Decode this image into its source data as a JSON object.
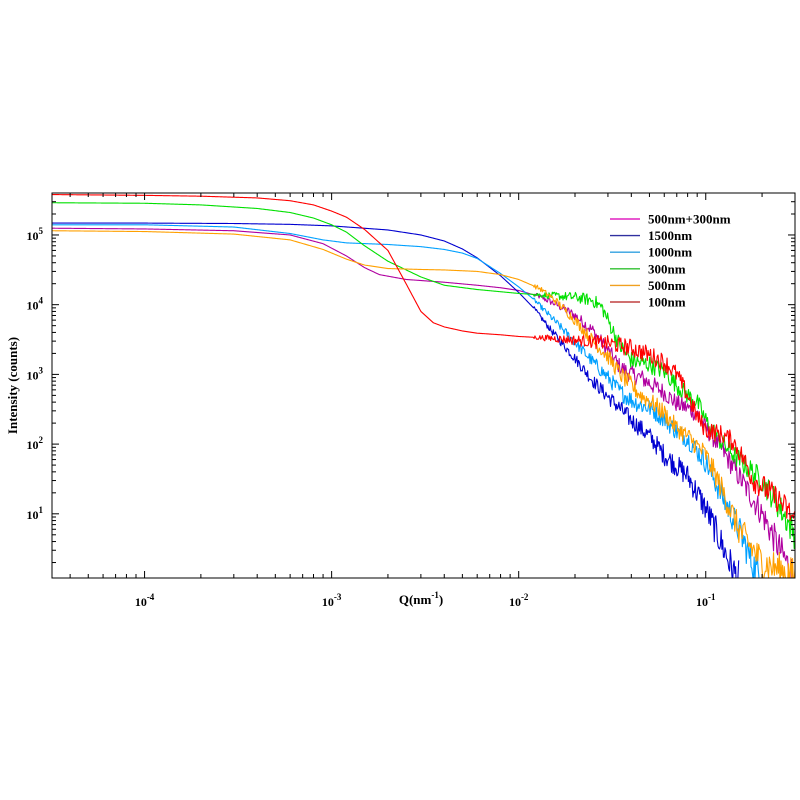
{
  "chart_data": {
    "type": "line",
    "xscale": "log",
    "yscale": "log",
    "xlim": [
      3.2e-05,
      0.3
    ],
    "ylim": [
      1.2,
      400000
    ],
    "grid": false,
    "legend_position": "top-right",
    "xlabel": {
      "base": "Q(nm",
      "sup": "-1",
      "end": ")"
    },
    "ylabel": "Intensity (counts)",
    "x_ticks": [
      {
        "value": 0.0001,
        "base": "10",
        "exp": "-4"
      },
      {
        "value": 0.001,
        "base": "10",
        "exp": "-3"
      },
      {
        "value": 0.01,
        "base": "10",
        "exp": "-2"
      },
      {
        "value": 0.1,
        "base": "10",
        "exp": "-1"
      }
    ],
    "y_ticks": [
      {
        "value": 10,
        "base": "10",
        "exp": "1"
      },
      {
        "value": 100,
        "base": "10",
        "exp": "2"
      },
      {
        "value": 1000,
        "base": "10",
        "exp": "3"
      },
      {
        "value": 10000,
        "base": "10",
        "exp": "4"
      },
      {
        "value": 100000,
        "base": "10",
        "exp": "5"
      }
    ],
    "series": [
      {
        "name": "500nm+300nm",
        "color": "#e020c0",
        "dark": "#b000a0",
        "points": [
          [
            3.2e-05,
            125000
          ],
          [
            0.0001,
            122000
          ],
          [
            0.0003,
            115000
          ],
          [
            0.0006,
            100000
          ],
          [
            0.0009,
            75000
          ],
          [
            0.0012,
            50000
          ],
          [
            0.0015,
            34000
          ],
          [
            0.0018,
            27000
          ],
          [
            0.0025,
            23000
          ],
          [
            0.004,
            21000
          ],
          [
            0.006,
            19000
          ],
          [
            0.008,
            17500
          ],
          [
            0.01,
            16000
          ],
          [
            0.013,
            13000
          ],
          [
            0.016,
            10000
          ],
          [
            0.02,
            7000
          ],
          [
            0.025,
            4200
          ],
          [
            0.03,
            2200
          ],
          [
            0.035,
            1250
          ],
          [
            0.04,
            1000
          ],
          [
            0.045,
            900
          ],
          [
            0.05,
            750
          ],
          [
            0.06,
            550
          ],
          [
            0.07,
            380
          ],
          [
            0.08,
            330
          ],
          [
            0.09,
            270
          ],
          [
            0.1,
            170
          ],
          [
            0.12,
            90
          ],
          [
            0.15,
            35
          ],
          [
            0.2,
            10
          ],
          [
            0.25,
            3
          ],
          [
            0.3,
            1.2
          ]
        ]
      },
      {
        "name": "1500nm",
        "color": "#3030a0",
        "dark": "#0000d0",
        "points": [
          [
            3.2e-05,
            148000
          ],
          [
            0.0001,
            148000
          ],
          [
            0.0003,
            146000
          ],
          [
            0.0006,
            142000
          ],
          [
            0.001,
            135000
          ],
          [
            0.002,
            118000
          ],
          [
            0.003,
            100000
          ],
          [
            0.004,
            82000
          ],
          [
            0.005,
            63000
          ],
          [
            0.006,
            47000
          ],
          [
            0.008,
            26000
          ],
          [
            0.01,
            15000
          ],
          [
            0.012,
            9000
          ],
          [
            0.015,
            4200
          ],
          [
            0.02,
            1700
          ],
          [
            0.025,
            800
          ],
          [
            0.03,
            480
          ],
          [
            0.035,
            320
          ],
          [
            0.04,
            220
          ],
          [
            0.05,
            130
          ],
          [
            0.06,
            70
          ],
          [
            0.08,
            35
          ],
          [
            0.1,
            12
          ],
          [
            0.12,
            4
          ],
          [
            0.14,
            1.5
          ],
          [
            0.15,
            1.2
          ]
        ]
      },
      {
        "name": "1000nm",
        "color": "#30a0e0",
        "dark": "#00a0ff",
        "points": [
          [
            3.2e-05,
            140000
          ],
          [
            0.0001,
            140000
          ],
          [
            0.0003,
            130000
          ],
          [
            0.0006,
            105000
          ],
          [
            0.0009,
            85000
          ],
          [
            0.0012,
            77000
          ],
          [
            0.002,
            73000
          ],
          [
            0.003,
            68000
          ],
          [
            0.004,
            62000
          ],
          [
            0.005,
            55000
          ],
          [
            0.006,
            46000
          ],
          [
            0.008,
            28000
          ],
          [
            0.01,
            18000
          ],
          [
            0.012,
            12000
          ],
          [
            0.015,
            6500
          ],
          [
            0.02,
            2900
          ],
          [
            0.025,
            1500
          ],
          [
            0.03,
            900
          ],
          [
            0.035,
            560
          ],
          [
            0.04,
            430
          ],
          [
            0.045,
            360
          ],
          [
            0.05,
            330
          ],
          [
            0.06,
            230
          ],
          [
            0.07,
            150
          ],
          [
            0.08,
            120
          ],
          [
            0.1,
            55
          ],
          [
            0.12,
            20
          ],
          [
            0.15,
            6
          ],
          [
            0.18,
            1.8
          ],
          [
            0.2,
            1.2
          ]
        ]
      },
      {
        "name": "300nm",
        "color": "#30c030",
        "dark": "#00e000",
        "points": [
          [
            3.2e-05,
            290000
          ],
          [
            0.0001,
            285000
          ],
          [
            0.0002,
            270000
          ],
          [
            0.0004,
            240000
          ],
          [
            0.0006,
            210000
          ],
          [
            0.0008,
            175000
          ],
          [
            0.001,
            140000
          ],
          [
            0.0012,
            110000
          ],
          [
            0.0015,
            70000
          ],
          [
            0.002,
            42000
          ],
          [
            0.003,
            25000
          ],
          [
            0.004,
            19000
          ],
          [
            0.006,
            16500
          ],
          [
            0.01,
            14500
          ],
          [
            0.015,
            13500
          ],
          [
            0.02,
            12800
          ],
          [
            0.025,
            11500
          ],
          [
            0.028,
            9000
          ],
          [
            0.03,
            6000
          ],
          [
            0.035,
            2500
          ],
          [
            0.04,
            1600
          ],
          [
            0.045,
            1450
          ],
          [
            0.05,
            1400
          ],
          [
            0.06,
            1100
          ],
          [
            0.07,
            700
          ],
          [
            0.08,
            500
          ],
          [
            0.09,
            400
          ],
          [
            0.1,
            220
          ],
          [
            0.12,
            110
          ],
          [
            0.15,
            60
          ],
          [
            0.2,
            30
          ],
          [
            0.25,
            12
          ],
          [
            0.3,
            5
          ]
        ]
      },
      {
        "name": "500nm",
        "color": "#f0a020",
        "dark": "#ffa000",
        "points": [
          [
            3.2e-05,
            115000
          ],
          [
            0.0001,
            112000
          ],
          [
            0.0003,
            103000
          ],
          [
            0.0006,
            85000
          ],
          [
            0.0009,
            62000
          ],
          [
            0.0012,
            45000
          ],
          [
            0.0015,
            37000
          ],
          [
            0.002,
            33000
          ],
          [
            0.003,
            32000
          ],
          [
            0.004,
            31500
          ],
          [
            0.006,
            30000
          ],
          [
            0.008,
            27000
          ],
          [
            0.01,
            23000
          ],
          [
            0.013,
            17000
          ],
          [
            0.016,
            11000
          ],
          [
            0.02,
            6000
          ],
          [
            0.025,
            3000
          ],
          [
            0.03,
            1800
          ],
          [
            0.035,
            1000
          ],
          [
            0.04,
            700
          ],
          [
            0.045,
            500
          ],
          [
            0.05,
            420
          ],
          [
            0.06,
            280
          ],
          [
            0.07,
            170
          ],
          [
            0.08,
            130
          ],
          [
            0.1,
            70
          ],
          [
            0.12,
            25
          ],
          [
            0.15,
            6
          ],
          [
            0.2,
            2
          ],
          [
            0.3,
            1.3
          ]
        ]
      },
      {
        "name": "100nm",
        "color": "#c04040",
        "dark": "#ff0000",
        "points": [
          [
            3.2e-05,
            380000
          ],
          [
            0.0001,
            370000
          ],
          [
            0.0002,
            360000
          ],
          [
            0.0004,
            340000
          ],
          [
            0.0006,
            310000
          ],
          [
            0.0008,
            270000
          ],
          [
            0.001,
            220000
          ],
          [
            0.0012,
            180000
          ],
          [
            0.0015,
            120000
          ],
          [
            0.002,
            60000
          ],
          [
            0.0025,
            20000
          ],
          [
            0.003,
            8000
          ],
          [
            0.0035,
            5500
          ],
          [
            0.004,
            4800
          ],
          [
            0.005,
            4200
          ],
          [
            0.006,
            3900
          ],
          [
            0.008,
            3700
          ],
          [
            0.01,
            3500
          ],
          [
            0.015,
            3300
          ],
          [
            0.02,
            3100
          ],
          [
            0.03,
            2800
          ],
          [
            0.04,
            2400
          ],
          [
            0.05,
            1900
          ],
          [
            0.06,
            1500
          ],
          [
            0.07,
            1000
          ],
          [
            0.08,
            500
          ],
          [
            0.09,
            250
          ],
          [
            0.1,
            160
          ],
          [
            0.12,
            140
          ],
          [
            0.14,
            110
          ],
          [
            0.16,
            60
          ],
          [
            0.18,
            30
          ],
          [
            0.2,
            25
          ],
          [
            0.25,
            15
          ],
          [
            0.3,
            8
          ]
        ]
      }
    ]
  }
}
